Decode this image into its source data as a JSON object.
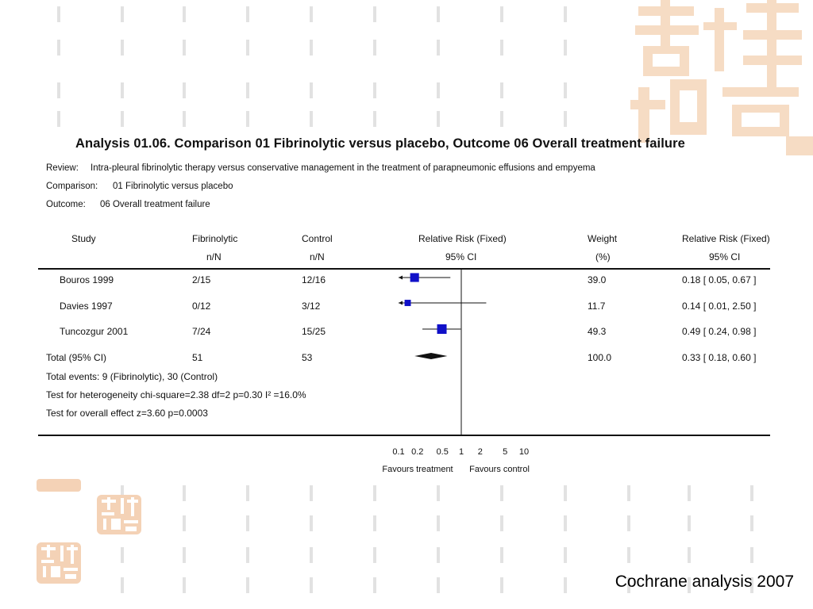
{
  "title": "Analysis 01.06.    Comparison 01 Fibrinolytic versus placebo, Outcome 06 Overall treatment failure",
  "meta": [
    {
      "key": "Review:",
      "value": "Intra-pleural fibrinolytic therapy versus conservative management in the treatment of parapneumonic effusions and empyema"
    },
    {
      "key": "Comparison:",
      "value": "01 Fibrinolytic versus placebo"
    },
    {
      "key": "Outcome:",
      "value": "06 Overall treatment failure"
    }
  ],
  "columns": {
    "study": "Study",
    "fib": "Fibrinolytic",
    "fib_sub": "n/N",
    "ctrl": "Control",
    "ctrl_sub": "n/N",
    "rr": "Relative Risk (Fixed)",
    "rr_sub": "95% CI",
    "weight": "Weight",
    "weight_sub": "(%)",
    "rr2": "Relative Risk (Fixed)",
    "rr2_sub": "95% CI"
  },
  "rows": [
    {
      "study": "Bouros 1999",
      "fib": "2/15",
      "ctrl": "12/16",
      "weight": "39.0",
      "ci_text": "0.18 [ 0.05, 0.67 ]"
    },
    {
      "study": "Davies 1997",
      "fib": "0/12",
      "ctrl": "3/12",
      "weight": "11.7",
      "ci_text": "0.14 [ 0.01, 2.50 ]"
    },
    {
      "study": "Tuncozgur 2001",
      "fib": "7/24",
      "ctrl": "15/25",
      "weight": "49.3",
      "ci_text": "0.49 [ 0.24, 0.98 ]"
    }
  ],
  "total": {
    "study": "Total (95% CI)",
    "fib": "51",
    "ctrl": "53",
    "weight": "100.0",
    "ci_text": "0.33 [ 0.18, 0.60 ]"
  },
  "footnotes": [
    "Total events: 9 (Fibrinolytic), 30 (Control)",
    "Test for heterogeneity chi-square=2.38 df=2 p=0.30 I² =16.0%",
    "Test for overall effect z=3.60    p=0.0003"
  ],
  "axis": {
    "ticks": [
      "0.1",
      "0.2",
      "0.5",
      "1",
      "2",
      "5",
      "10"
    ],
    "favours_left": "Favours treatment",
    "favours_right": "Favours control"
  },
  "caption": "Cochrane analysis 2007",
  "colors": {
    "square": "#1010c8",
    "text": "#111111",
    "seal": "#f6dcc4"
  },
  "chart_data": {
    "type": "forest",
    "scale": "log",
    "xlim": [
      0.1,
      10
    ],
    "null_line": 1,
    "x_ticks": [
      0.1,
      0.2,
      0.5,
      1,
      2,
      5,
      10
    ],
    "studies": [
      {
        "name": "Bouros 1999",
        "rr": 0.18,
        "lower": 0.05,
        "upper": 0.67,
        "weight": 39.0
      },
      {
        "name": "Davies 1997",
        "rr": 0.14,
        "lower": 0.01,
        "upper": 2.5,
        "weight": 11.7
      },
      {
        "name": "Tuncozgur 2001",
        "rr": 0.49,
        "lower": 0.24,
        "upper": 0.98,
        "weight": 49.3
      }
    ],
    "pooled": {
      "name": "Total (95% CI)",
      "rr": 0.33,
      "lower": 0.18,
      "upper": 0.6,
      "weight": 100.0
    }
  }
}
